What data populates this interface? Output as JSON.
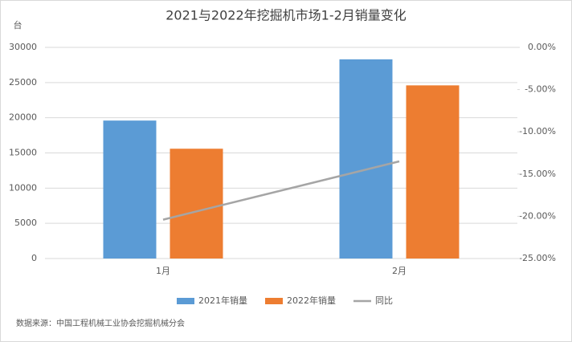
{
  "chart_data": {
    "type": "bar-line",
    "title": "2021与2022年挖掘机市场1-2月销量变化",
    "y_axis_label": "台",
    "categories": [
      "1月",
      "2月"
    ],
    "series": [
      {
        "name": "2021年销量",
        "color": "#5b9bd5",
        "type": "bar",
        "values": [
          19600,
          28300
        ]
      },
      {
        "name": "2022年销量",
        "color": "#ed7d31",
        "type": "bar",
        "values": [
          15600,
          24600
        ]
      },
      {
        "name": "同比",
        "color": "#a5a5a5",
        "type": "line",
        "axis": "y2",
        "values": [
          -20.4,
          -13.5
        ]
      }
    ],
    "ylim": [
      0,
      30000
    ],
    "yticks": [
      0,
      5000,
      10000,
      15000,
      20000,
      25000,
      30000
    ],
    "y2lim": [
      -25,
      0
    ],
    "y2ticks": [
      {
        "value": -25,
        "label": "-25.00%"
      },
      {
        "value": -20,
        "label": "-20.00%"
      },
      {
        "value": -15,
        "label": "-15.00%"
      },
      {
        "value": -10,
        "label": "-10.00%"
      },
      {
        "value": -5,
        "label": "-5.00%"
      },
      {
        "value": 0,
        "label": "0.00%"
      }
    ],
    "grid": true,
    "legend": "bottom",
    "source": "数据来源：中国工程机械工业协会挖掘机械分会"
  }
}
